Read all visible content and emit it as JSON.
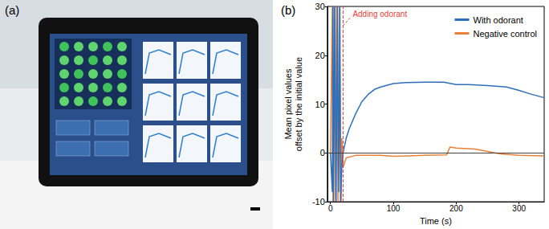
{
  "panel_labels": [
    "(a)",
    "(b)"
  ],
  "chart_data": {
    "type": "line",
    "x_label": "Time (s)",
    "y_label": "Mean pixel values\noffset by the initial value",
    "xlim": [
      -5,
      340
    ],
    "xticks": [
      0,
      100,
      200,
      300
    ],
    "ylim": [
      -10,
      30
    ],
    "yticks": [
      -10,
      0,
      10,
      20,
      30
    ],
    "grid": false,
    "legend": "upper right",
    "baseline": 0,
    "annotations": [
      {
        "text": "Adding odorant",
        "x": 20,
        "color": "#e8403a"
      }
    ],
    "series": [
      {
        "name": "With odorant",
        "color": "#2f6fba",
        "x": [
          0,
          3,
          4,
          5,
          7,
          9,
          11,
          13,
          15,
          16,
          18,
          20,
          25,
          30,
          40,
          50,
          60,
          70,
          80,
          100,
          120,
          150,
          180,
          200,
          220,
          250,
          280,
          300,
          320,
          340
        ],
        "values": [
          0,
          -8,
          30,
          -10,
          30,
          -10,
          30,
          -8,
          30,
          -10,
          -3,
          0,
          3,
          5,
          8,
          10.5,
          12,
          13,
          13.5,
          14.2,
          14.4,
          14.5,
          14.5,
          14,
          14,
          13.8,
          13.5,
          12.8,
          12,
          11.3
        ]
      },
      {
        "name": "Negative control",
        "color": "#e8803a",
        "x": [
          0,
          3,
          4,
          6,
          8,
          10,
          12,
          14,
          17,
          18,
          20,
          25,
          40,
          80,
          100,
          150,
          185,
          190,
          200,
          230,
          250,
          270,
          300,
          340
        ],
        "values": [
          0,
          30,
          -10,
          30,
          -10,
          30,
          -10,
          30,
          -10,
          3,
          -3,
          -1,
          -0.5,
          -0.5,
          -0.7,
          -0.5,
          -0.4,
          1.2,
          1,
          0.8,
          0.3,
          -0.2,
          -0.5,
          -0.6
        ]
      }
    ]
  }
}
